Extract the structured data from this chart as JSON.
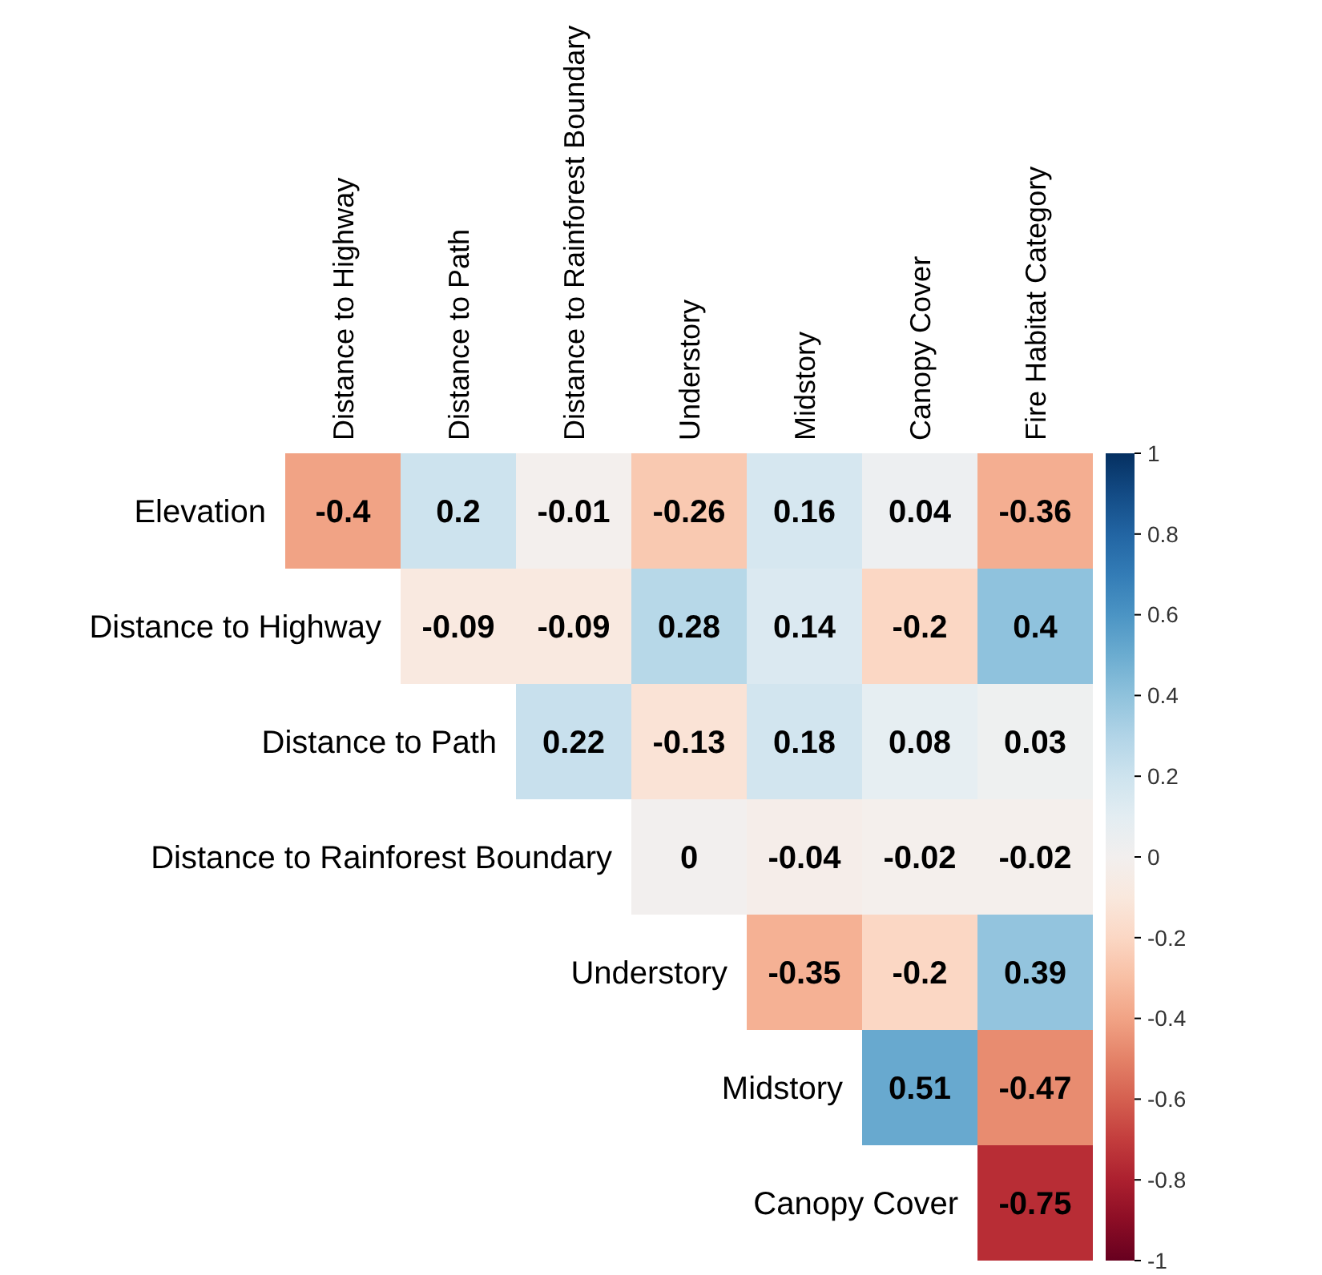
{
  "chart_data": {
    "type": "heatmap",
    "categories": [
      "Distance to Highway",
      "Distance to Path",
      "Distance to Rainforest Boundary",
      "Understory",
      "Midstory",
      "Canopy Cover",
      "Fire Habitat Category"
    ],
    "y_categories": [
      "Elevation",
      "Distance to Highway",
      "Distance to Path",
      "Distance to Rainforest Boundary",
      "Understory",
      "Midstory",
      "Canopy Cover"
    ],
    "cells": [
      [
        -0.4,
        0.2,
        -0.01,
        -0.26,
        0.16,
        0.04,
        -0.36
      ],
      [
        null,
        -0.09,
        -0.09,
        0.28,
        0.14,
        -0.2,
        0.4
      ],
      [
        null,
        null,
        0.22,
        -0.13,
        0.18,
        0.08,
        0.03
      ],
      [
        null,
        null,
        null,
        0,
        -0.04,
        -0.02,
        -0.02
      ],
      [
        null,
        null,
        null,
        null,
        -0.35,
        -0.2,
        0.39
      ],
      [
        null,
        null,
        null,
        null,
        null,
        0.51,
        -0.47
      ],
      [
        null,
        null,
        null,
        null,
        null,
        null,
        -0.75
      ]
    ],
    "data_labels": true,
    "clim": [
      -1,
      1
    ],
    "cticks": [
      -1,
      -0.8,
      -0.6,
      -0.4,
      -0.2,
      0,
      0.2,
      0.4,
      0.6,
      0.8,
      1
    ]
  }
}
